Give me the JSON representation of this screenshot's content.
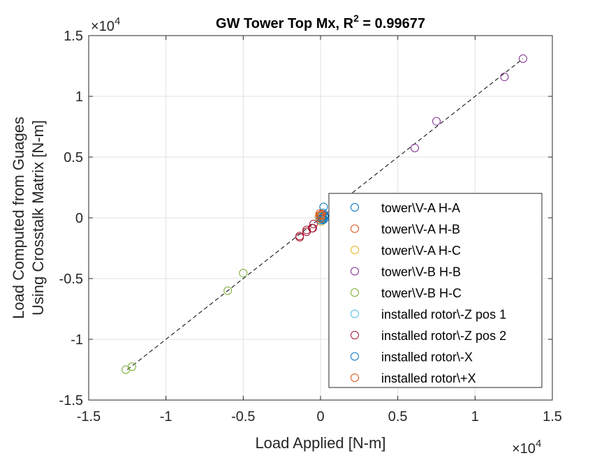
{
  "chart_data": {
    "type": "scatter",
    "title_main": "GW Tower Top Mx, R",
    "title_sup": "2",
    "title_tail": " = 0.99677",
    "xlabel": "Load Applied [N-m]",
    "ylabel_lines": [
      "Load Computed from Guages",
      "Using Crosstalk Matrix [N-m]"
    ],
    "exponent_base": "×10",
    "exponent_power": "4",
    "xlim": [
      -15000,
      15000
    ],
    "ylim": [
      -15000,
      15000
    ],
    "xticks": [
      -15000,
      -10000,
      -5000,
      0,
      5000,
      10000,
      15000
    ],
    "yticks": [
      -15000,
      -10000,
      -5000,
      0,
      5000,
      10000,
      15000
    ],
    "tick_labels": [
      "-1.5",
      "-1",
      "-0.5",
      "0",
      "0.5",
      "1",
      "1.5"
    ],
    "grid": true,
    "legend_position": "lower-right",
    "reference_line": {
      "style": "dashed",
      "color": "#000000",
      "from": [
        -12500,
        -12500
      ],
      "to": [
        13100,
        13100
      ]
    },
    "series": [
      {
        "name": "tower\\V-A H-A",
        "color": "#0072BD",
        "points": [
          [
            200,
            900
          ],
          [
            250,
            100
          ],
          [
            100,
            -200
          ],
          [
            300,
            0
          ],
          [
            150,
            400
          ],
          [
            50,
            -100
          ]
        ]
      },
      {
        "name": "tower\\V-A H-B",
        "color": "#D95319",
        "points": [
          [
            0,
            0
          ],
          [
            -50,
            200
          ],
          [
            100,
            300
          ],
          [
            -100,
            100
          ],
          [
            50,
            -50
          ]
        ]
      },
      {
        "name": "tower\\V-A H-C",
        "color": "#EDB120",
        "points": [
          [
            0,
            -100
          ],
          [
            -100,
            50
          ],
          [
            100,
            150
          ],
          [
            0,
            200
          ],
          [
            50,
            -300
          ]
        ]
      },
      {
        "name": "tower\\V-B H-B",
        "color": "#7E2F8E",
        "points": [
          [
            6100,
            5750
          ],
          [
            7500,
            7950
          ],
          [
            11900,
            11600
          ],
          [
            13100,
            13100
          ]
        ]
      },
      {
        "name": "tower\\V-B H-C",
        "color": "#77AC30",
        "points": [
          [
            -5000,
            -4550
          ],
          [
            -6000,
            -6000
          ],
          [
            -12200,
            -12250
          ],
          [
            -12600,
            -12500
          ]
        ]
      },
      {
        "name": "installed rotor\\-Z pos 1",
        "color": "#4DBEEE",
        "points": [
          [
            0,
            -200
          ],
          [
            50,
            100
          ],
          [
            -50,
            0
          ],
          [
            100,
            -100
          ]
        ]
      },
      {
        "name": "installed rotor\\-Z pos 2",
        "color": "#A2142F",
        "points": [
          [
            -450,
            -500
          ],
          [
            -500,
            -850
          ],
          [
            -900,
            -1000
          ],
          [
            -900,
            -1150
          ],
          [
            -1350,
            -1600
          ],
          [
            -1350,
            -1500
          ],
          [
            -550,
            -850
          ]
        ]
      },
      {
        "name": "installed rotor\\-X",
        "color": "#0072BD",
        "points": [
          [
            200,
            -150
          ],
          [
            150,
            50
          ],
          [
            100,
            -100
          ],
          [
            250,
            200
          ]
        ]
      },
      {
        "name": "installed rotor\\+X",
        "color": "#D95319",
        "points": [
          [
            0,
            150
          ],
          [
            -50,
            350
          ],
          [
            50,
            250
          ],
          [
            0,
            -50
          ]
        ]
      }
    ]
  }
}
